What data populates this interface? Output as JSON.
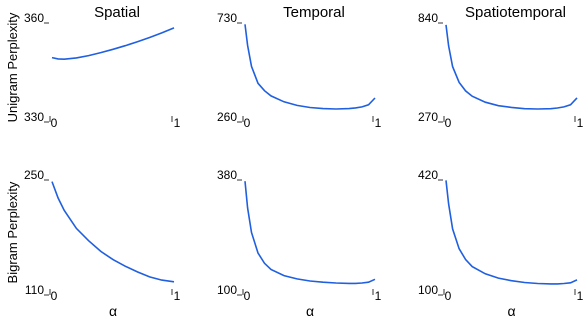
{
  "chart_data": [
    {
      "type": "line",
      "title": "Spatial",
      "ylabel": "Unigram Perplexity",
      "xlabel": "",
      "ylim": [
        330,
        360
      ],
      "xlim": [
        0,
        1
      ],
      "y_ticks": [
        "360",
        "330"
      ],
      "x_ticks": [
        "0",
        "1"
      ],
      "x": [
        0.0,
        0.05,
        0.1,
        0.2,
        0.3,
        0.4,
        0.5,
        0.6,
        0.7,
        0.8,
        0.9,
        1.0
      ],
      "y": [
        348.0,
        347.6,
        347.5,
        347.9,
        348.6,
        349.5,
        350.5,
        351.6,
        352.8,
        354.1,
        355.5,
        357.0
      ]
    },
    {
      "type": "line",
      "title": "Temporal",
      "ylabel": "",
      "xlabel": "",
      "ylim": [
        260,
        730
      ],
      "xlim": [
        0,
        1
      ],
      "y_ticks": [
        "730",
        "260"
      ],
      "x_ticks": [
        "0",
        "1"
      ],
      "x": [
        0.0,
        0.02,
        0.05,
        0.1,
        0.15,
        0.2,
        0.3,
        0.4,
        0.5,
        0.6,
        0.7,
        0.8,
        0.85,
        0.9,
        0.95,
        1.0
      ],
      "y": [
        700,
        600,
        500,
        420,
        385,
        360,
        332,
        315,
        305,
        300,
        298,
        300,
        303,
        308,
        318,
        350
      ]
    },
    {
      "type": "line",
      "title": "Spatiotemporal",
      "ylabel": "",
      "xlabel": "",
      "ylim": [
        270,
        840
      ],
      "xlim": [
        0,
        1
      ],
      "y_ticks": [
        "840",
        "270"
      ],
      "x_ticks": [
        "0",
        "1"
      ],
      "x": [
        0.0,
        0.02,
        0.05,
        0.1,
        0.15,
        0.2,
        0.3,
        0.4,
        0.5,
        0.6,
        0.7,
        0.8,
        0.85,
        0.9,
        0.95,
        1.0
      ],
      "y": [
        800,
        680,
        560,
        470,
        420,
        390,
        355,
        335,
        325,
        318,
        316,
        318,
        322,
        328,
        340,
        380
      ]
    },
    {
      "type": "line",
      "title": "",
      "ylabel": "Bigram Perplexity",
      "xlabel": "α",
      "ylim": [
        110,
        250
      ],
      "xlim": [
        0,
        1
      ],
      "y_ticks": [
        "250",
        "110"
      ],
      "x_ticks": [
        "0",
        "1"
      ],
      "x": [
        0.0,
        0.05,
        0.1,
        0.2,
        0.3,
        0.4,
        0.5,
        0.6,
        0.7,
        0.8,
        0.9,
        1.0
      ],
      "y": [
        242,
        222,
        207,
        185,
        170,
        157,
        147,
        139,
        132,
        126,
        122,
        120
      ]
    },
    {
      "type": "line",
      "title": "",
      "ylabel": "",
      "xlabel": "α",
      "ylim": [
        100,
        380
      ],
      "xlim": [
        0,
        1
      ],
      "y_ticks": [
        "380",
        "100"
      ],
      "x_ticks": [
        "0",
        "1"
      ],
      "x": [
        0.0,
        0.02,
        0.05,
        0.1,
        0.15,
        0.2,
        0.3,
        0.4,
        0.5,
        0.6,
        0.7,
        0.8,
        0.85,
        0.9,
        0.95,
        1.0
      ],
      "y": [
        365,
        300,
        240,
        190,
        165,
        150,
        135,
        127,
        122,
        119,
        117,
        116,
        116,
        117,
        119,
        126
      ]
    },
    {
      "type": "line",
      "title": "",
      "ylabel": "",
      "xlabel": "α",
      "ylim": [
        100,
        420
      ],
      "xlim": [
        0,
        1
      ],
      "y_ticks": [
        "420",
        "100"
      ],
      "x_ticks": [
        "0",
        "1"
      ],
      "x": [
        0.0,
        0.02,
        0.05,
        0.1,
        0.15,
        0.2,
        0.3,
        0.4,
        0.5,
        0.6,
        0.7,
        0.8,
        0.85,
        0.9,
        0.95,
        1.0
      ],
      "y": [
        405,
        340,
        270,
        215,
        185,
        165,
        145,
        133,
        126,
        121,
        118,
        117,
        117,
        118,
        120,
        128
      ]
    }
  ]
}
